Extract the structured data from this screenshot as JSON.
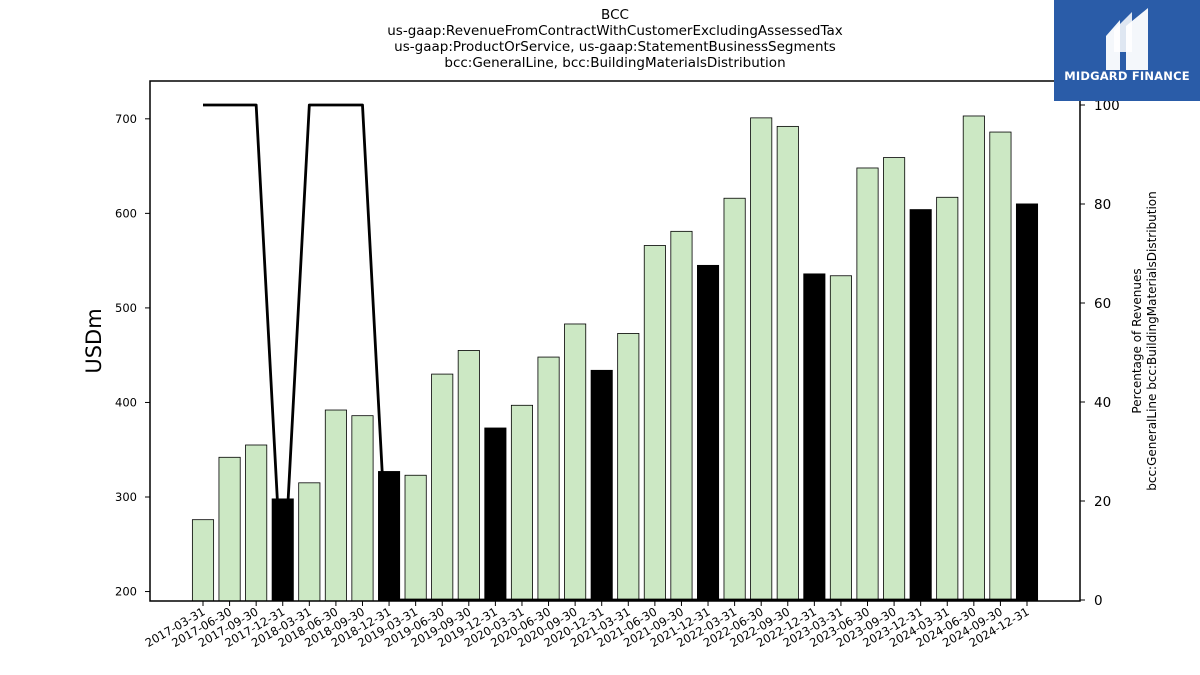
{
  "title_lines": [
    "BCC",
    "us-gaap:RevenueFromContractWithCustomerExcludingAssessedTax",
    "us-gaap:ProductOrService, us-gaap:StatementBusinessSegments",
    "bcc:GeneralLine, bcc:BuildingMaterialsDistribution"
  ],
  "logo": {
    "text": "MIDGARD FINANCE",
    "background": "#2a5ca8"
  },
  "chart_data": {
    "type": "bar",
    "categories": [
      "2017-03-31",
      "2017-06-30",
      "2017-09-30",
      "2017-12-31",
      "2018-03-31",
      "2018-06-30",
      "2018-09-30",
      "2018-12-31",
      "2019-03-31",
      "2019-06-30",
      "2019-09-30",
      "2019-12-31",
      "2020-03-31",
      "2020-06-30",
      "2020-09-30",
      "2020-12-31",
      "2021-03-31",
      "2021-06-30",
      "2021-09-30",
      "2021-12-31",
      "2022-03-31",
      "2022-06-30",
      "2022-09-30",
      "2022-12-31",
      "2023-03-31",
      "2023-06-30",
      "2023-09-30",
      "2023-12-31",
      "2024-03-31",
      "2024-06-30",
      "2024-09-30",
      "2024-12-31"
    ],
    "values": [
      276,
      342,
      355,
      298,
      315,
      392,
      386,
      327,
      323,
      430,
      455,
      373,
      397,
      448,
      483,
      434,
      473,
      566,
      581,
      545,
      616,
      701,
      692,
      536,
      534,
      648,
      659,
      604,
      617,
      703,
      686,
      610
    ],
    "highlight": [
      false,
      false,
      false,
      true,
      false,
      false,
      false,
      true,
      false,
      false,
      false,
      true,
      false,
      false,
      false,
      true,
      false,
      false,
      false,
      true,
      false,
      false,
      false,
      true,
      false,
      false,
      false,
      true,
      false,
      false,
      false,
      true
    ],
    "bar_color": "#cce8c4",
    "highlight_color": "#000000",
    "ylabel": "USDm",
    "ylim": [
      190,
      740
    ],
    "yticks": [
      200,
      300,
      400,
      500,
      600,
      700
    ],
    "secondary": {
      "type": "line",
      "values": [
        100,
        100,
        100,
        0,
        100,
        100,
        100,
        0,
        0,
        0,
        0,
        0,
        0,
        0,
        0,
        0,
        0,
        0,
        0,
        0,
        0,
        0,
        0,
        0,
        0,
        0,
        0,
        0,
        0,
        0,
        0,
        0
      ],
      "ylabel_lines": [
        "Percentage of Revenues",
        "bcc:GeneralLine bcc:BuildingMaterialsDistribution"
      ],
      "ylim": [
        0,
        100
      ],
      "yticks": [
        0,
        20,
        40,
        60,
        80,
        100
      ],
      "color": "#000000"
    }
  }
}
